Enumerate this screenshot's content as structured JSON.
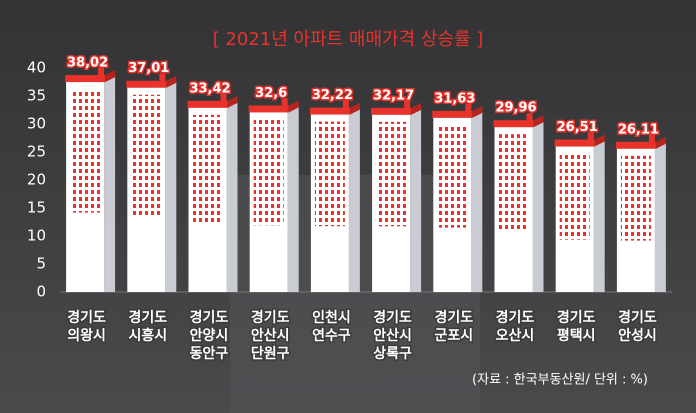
{
  "chart_data": {
    "type": "bar",
    "title": "[ 2021년 아파트 매매가격 상승률 ]",
    "categories": [
      [
        "경기도",
        "의왕시"
      ],
      [
        "경기도",
        "시흥시"
      ],
      [
        "경기도",
        "안양시",
        "동안구"
      ],
      [
        "경기도",
        "안산시",
        "단원구"
      ],
      [
        "인천시",
        "연수구"
      ],
      [
        "경기도",
        "안산시",
        "상록구"
      ],
      [
        "경기도",
        "군포시"
      ],
      [
        "경기도",
        "오산시"
      ],
      [
        "경기도",
        "평택시"
      ],
      [
        "경기도",
        "안성시"
      ]
    ],
    "values": [
      38.02,
      37.01,
      33.42,
      32.6,
      32.22,
      32.17,
      31.63,
      29.96,
      26.51,
      26.11
    ],
    "value_labels": [
      "38,02",
      "37,01",
      "33,42",
      "32,6",
      "32,22",
      "32,17",
      "31,63",
      "29,96",
      "26,51",
      "26,11"
    ],
    "color": "#e8322b",
    "ylim": [
      0,
      40
    ],
    "yticks": [
      0,
      5,
      10,
      15,
      20,
      25,
      30,
      35,
      40
    ],
    "source": "(자료 : 한국부동산원/ 단위 : %)"
  }
}
